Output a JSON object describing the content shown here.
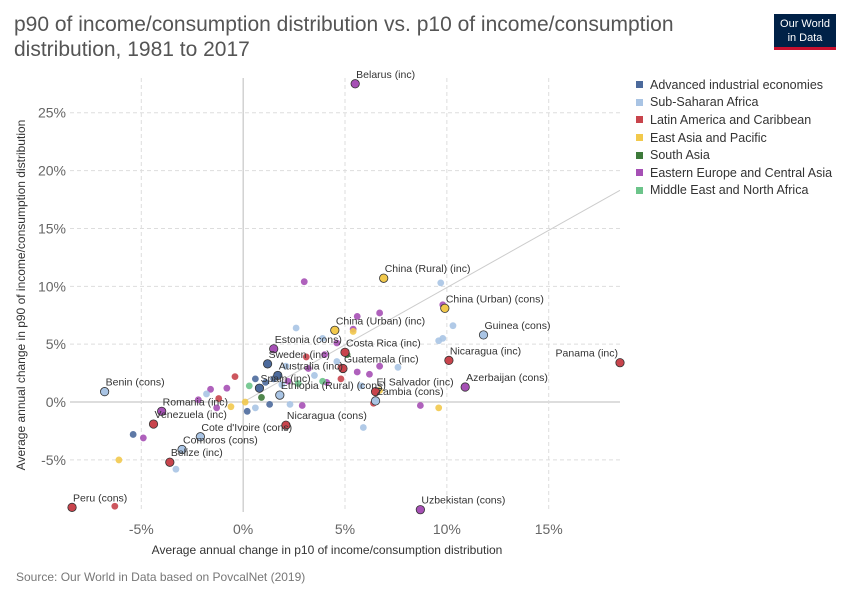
{
  "header": {
    "title": "p90 of income/consumption distribution vs. p10 of income/consumption distribution, 1981 to 2017",
    "logo_line1": "Our World",
    "logo_line2": "in Data"
  },
  "footer": {
    "source": "Source: Our World in Data based on PovcalNet (2019)"
  },
  "colors": {
    "Advanced industrial economies": "#4c6a9c",
    "Sub-Saharan Africa": "#a9c4e4",
    "Latin America and Caribbean": "#c8444c",
    "East Asia and Pacific": "#f2c94c",
    "South Asia": "#3d7a3a",
    "Eastern Europe and Central Asia": "#a650b5",
    "Middle East and North Africa": "#6cc48a"
  },
  "chart_data": {
    "type": "scatter",
    "title": "p90 of income/consumption distribution vs. p10 of income/consumption distribution, 1981 to 2017",
    "xlabel": "Average annual change in p10 of income/consumption distribution",
    "ylabel": "Average annual change in p90 of income/consumption distribution",
    "xlim": [
      -8.5,
      18.5
    ],
    "ylim": [
      -9.5,
      28
    ],
    "xticks": [
      -5,
      0,
      5,
      10,
      15
    ],
    "xtick_labels": [
      "-5%",
      "0%",
      "5%",
      "10%",
      "15%"
    ],
    "yticks": [
      -5,
      0,
      5,
      10,
      15,
      20,
      25
    ],
    "ytick_labels": [
      "-5%",
      "0%",
      "5%",
      "10%",
      "15%",
      "20%",
      "25%"
    ],
    "grid": true,
    "legend_position": "right",
    "legend": [
      "Advanced industrial economies",
      "Sub-Saharan Africa",
      "Latin America and Caribbean",
      "East Asia and Pacific",
      "South Asia",
      "Eastern Europe and Central Asia",
      "Middle East and North Africa"
    ],
    "reference_line": {
      "x1": 0,
      "y1": 0,
      "x2": 18.5,
      "y2": 18.3
    },
    "labeled_points": [
      {
        "label": "Belarus (inc)",
        "x": 5.5,
        "y": 27.5,
        "region": "Eastern Europe and Central Asia"
      },
      {
        "label": "China (Rural) (inc)",
        "x": 6.9,
        "y": 10.7,
        "region": "East Asia and Pacific"
      },
      {
        "label": "China (Urban) (cons)",
        "x": 9.9,
        "y": 8.1,
        "region": "East Asia and Pacific"
      },
      {
        "label": "China (Urban) (inc)",
        "x": 4.5,
        "y": 6.2,
        "region": "East Asia and Pacific"
      },
      {
        "label": "Guinea (cons)",
        "x": 11.8,
        "y": 5.8,
        "region": "Sub-Saharan Africa"
      },
      {
        "label": "Estonia (cons)",
        "x": 1.5,
        "y": 4.6,
        "region": "Eastern Europe and Central Asia"
      },
      {
        "label": "Costa Rica (inc)",
        "x": 5.0,
        "y": 4.3,
        "region": "Latin America and Caribbean"
      },
      {
        "label": "Nicaragua (inc)",
        "x": 10.1,
        "y": 3.6,
        "region": "Latin America and Caribbean"
      },
      {
        "label": "Panama (inc)",
        "x": 18.5,
        "y": 3.4,
        "region": "Latin America and Caribbean"
      },
      {
        "label": "Sweden (inc)",
        "x": 1.2,
        "y": 3.3,
        "region": "Advanced industrial economies"
      },
      {
        "label": "Guatemala (inc)",
        "x": 4.9,
        "y": 2.9,
        "region": "Latin America and Caribbean"
      },
      {
        "label": "Australia (inc)",
        "x": 1.7,
        "y": 2.3,
        "region": "Advanced industrial economies"
      },
      {
        "label": "Azerbaijan (cons)",
        "x": 10.9,
        "y": 1.3,
        "region": "Eastern Europe and Central Asia"
      },
      {
        "label": "Benin (cons)",
        "x": -6.8,
        "y": 0.9,
        "region": "Sub-Saharan Africa"
      },
      {
        "label": "Spain (inc)",
        "x": 0.8,
        "y": 1.2,
        "region": "Advanced industrial economies"
      },
      {
        "label": "El Salvador (inc)",
        "x": 6.5,
        "y": 0.9,
        "region": "Latin America and Caribbean"
      },
      {
        "label": "Ethiopia (Rural) (cons)",
        "x": 1.8,
        "y": 0.6,
        "region": "Sub-Saharan Africa"
      },
      {
        "label": "Zambia (cons)",
        "x": 6.5,
        "y": 0.1,
        "region": "Sub-Saharan Africa"
      },
      {
        "label": "Romania (inc)",
        "x": -4.0,
        "y": -0.8,
        "region": "Eastern Europe and Central Asia"
      },
      {
        "label": "Venezuela (inc)",
        "x": -4.4,
        "y": -1.9,
        "region": "Latin America and Caribbean"
      },
      {
        "label": "Nicaragua (cons)",
        "x": 2.1,
        "y": -2.0,
        "region": "Latin America and Caribbean"
      },
      {
        "label": "Cote d'Ivoire (cons)",
        "x": -2.1,
        "y": -3.0,
        "region": "Sub-Saharan Africa"
      },
      {
        "label": "Comoros (cons)",
        "x": -3.0,
        "y": -4.1,
        "region": "Sub-Saharan Africa"
      },
      {
        "label": "Belize (inc)",
        "x": -3.6,
        "y": -5.2,
        "region": "Latin America and Caribbean"
      },
      {
        "label": "Peru (cons)",
        "x": -8.4,
        "y": -9.1,
        "region": "Latin America and Caribbean"
      },
      {
        "label": "Uzbekistan (cons)",
        "x": 8.7,
        "y": -9.3,
        "region": "Eastern Europe and Central Asia"
      }
    ],
    "other_points": [
      {
        "x": 3.0,
        "y": 10.4,
        "region": "Eastern Europe and Central Asia"
      },
      {
        "x": 9.7,
        "y": 10.3,
        "region": "Sub-Saharan Africa"
      },
      {
        "x": 9.8,
        "y": 8.4,
        "region": "Eastern Europe and Central Asia"
      },
      {
        "x": 6.7,
        "y": 7.7,
        "region": "Eastern Europe and Central Asia"
      },
      {
        "x": 5.6,
        "y": 7.4,
        "region": "Eastern Europe and Central Asia"
      },
      {
        "x": 10.3,
        "y": 6.6,
        "region": "Sub-Saharan Africa"
      },
      {
        "x": 2.6,
        "y": 6.4,
        "region": "Sub-Saharan Africa"
      },
      {
        "x": 5.4,
        "y": 6.3,
        "region": "Eastern Europe and Central Asia"
      },
      {
        "x": 5.4,
        "y": 6.1,
        "region": "East Asia and Pacific"
      },
      {
        "x": 3.9,
        "y": 5.5,
        "region": "Sub-Saharan Africa"
      },
      {
        "x": 9.6,
        "y": 5.3,
        "region": "Sub-Saharan Africa"
      },
      {
        "x": 9.8,
        "y": 5.5,
        "region": "Sub-Saharan Africa"
      },
      {
        "x": 4.6,
        "y": 5.1,
        "region": "Eastern Europe and Central Asia"
      },
      {
        "x": 5.1,
        "y": 4.1,
        "region": "South Asia"
      },
      {
        "x": 4.0,
        "y": 4.1,
        "region": "Eastern Europe and Central Asia"
      },
      {
        "x": 3.1,
        "y": 3.9,
        "region": "Latin America and Caribbean"
      },
      {
        "x": 4.8,
        "y": 3.0,
        "region": "Latin America and Caribbean"
      },
      {
        "x": 5.6,
        "y": 2.6,
        "region": "Eastern Europe and Central Asia"
      },
      {
        "x": 6.2,
        "y": 2.4,
        "region": "Eastern Europe and Central Asia"
      },
      {
        "x": 3.5,
        "y": 2.3,
        "region": "Sub-Saharan Africa"
      },
      {
        "x": 4.1,
        "y": 1.7,
        "region": "Eastern Europe and Central Asia"
      },
      {
        "x": 4.8,
        "y": 2.0,
        "region": "Latin America and Caribbean"
      },
      {
        "x": 5.8,
        "y": 1.4,
        "region": "Sub-Saharan Africa"
      },
      {
        "x": 2.7,
        "y": 1.6,
        "region": "Middle East and North Africa"
      },
      {
        "x": 2.2,
        "y": 1.8,
        "region": "Eastern Europe and Central Asia"
      },
      {
        "x": 1.9,
        "y": 1.5,
        "region": "Sub-Saharan Africa"
      },
      {
        "x": 1.5,
        "y": 2.0,
        "region": "Advanced industrial economies"
      },
      {
        "x": 1.1,
        "y": 1.7,
        "region": "Advanced industrial economies"
      },
      {
        "x": 0.6,
        "y": 2.0,
        "region": "Advanced industrial economies"
      },
      {
        "x": 0.3,
        "y": 1.4,
        "region": "Middle East and North Africa"
      },
      {
        "x": -0.4,
        "y": 2.2,
        "region": "Latin America and Caribbean"
      },
      {
        "x": -0.8,
        "y": 1.2,
        "region": "Eastern Europe and Central Asia"
      },
      {
        "x": -1.6,
        "y": 1.1,
        "region": "Eastern Europe and Central Asia"
      },
      {
        "x": -1.8,
        "y": 0.7,
        "region": "Sub-Saharan Africa"
      },
      {
        "x": -2.2,
        "y": 0.2,
        "region": "Eastern Europe and Central Asia"
      },
      {
        "x": -1.2,
        "y": 0.3,
        "region": "Latin America and Caribbean"
      },
      {
        "x": 0.9,
        "y": 0.4,
        "region": "South Asia"
      },
      {
        "x": 1.3,
        "y": -0.2,
        "region": "Advanced industrial economies"
      },
      {
        "x": 0.1,
        "y": 0.0,
        "region": "East Asia and Pacific"
      },
      {
        "x": 0.6,
        "y": -0.5,
        "region": "Sub-Saharan Africa"
      },
      {
        "x": 2.3,
        "y": -0.2,
        "region": "Sub-Saharan Africa"
      },
      {
        "x": 2.9,
        "y": -0.3,
        "region": "Eastern Europe and Central Asia"
      },
      {
        "x": -1.3,
        "y": -0.5,
        "region": "Eastern Europe and Central Asia"
      },
      {
        "x": 3.2,
        "y": 2.9,
        "region": "Eastern Europe and Central Asia"
      },
      {
        "x": 2.1,
        "y": 3.1,
        "region": "Sub-Saharan Africa"
      },
      {
        "x": 1.2,
        "y": 3.3,
        "region": "South Asia"
      },
      {
        "x": -5.4,
        "y": -2.8,
        "region": "Advanced industrial economies"
      },
      {
        "x": -4.9,
        "y": -3.1,
        "region": "Eastern Europe and Central Asia"
      },
      {
        "x": -6.1,
        "y": -5.0,
        "region": "East Asia and Pacific"
      },
      {
        "x": -3.3,
        "y": -5.8,
        "region": "Sub-Saharan Africa"
      },
      {
        "x": -6.3,
        "y": -9.0,
        "region": "Latin America and Caribbean"
      },
      {
        "x": 5.9,
        "y": -2.2,
        "region": "Sub-Saharan Africa"
      },
      {
        "x": 7.6,
        "y": 3.0,
        "region": "Sub-Saharan Africa"
      },
      {
        "x": 9.6,
        "y": -0.5,
        "region": "East Asia and Pacific"
      },
      {
        "x": 8.7,
        "y": -0.3,
        "region": "Eastern Europe and Central Asia"
      },
      {
        "x": 6.4,
        "y": -0.1,
        "region": "Latin America and Caribbean"
      },
      {
        "x": 6.7,
        "y": 1.0,
        "region": "East Asia and Pacific"
      },
      {
        "x": 6.7,
        "y": 3.1,
        "region": "Eastern Europe and Central Asia"
      },
      {
        "x": 4.6,
        "y": 3.5,
        "region": "Sub-Saharan Africa"
      },
      {
        "x": 3.9,
        "y": 1.8,
        "region": "Middle East and North Africa"
      },
      {
        "x": 0.2,
        "y": -0.8,
        "region": "Advanced industrial economies"
      },
      {
        "x": -0.6,
        "y": -0.4,
        "region": "East Asia and Pacific"
      }
    ]
  }
}
